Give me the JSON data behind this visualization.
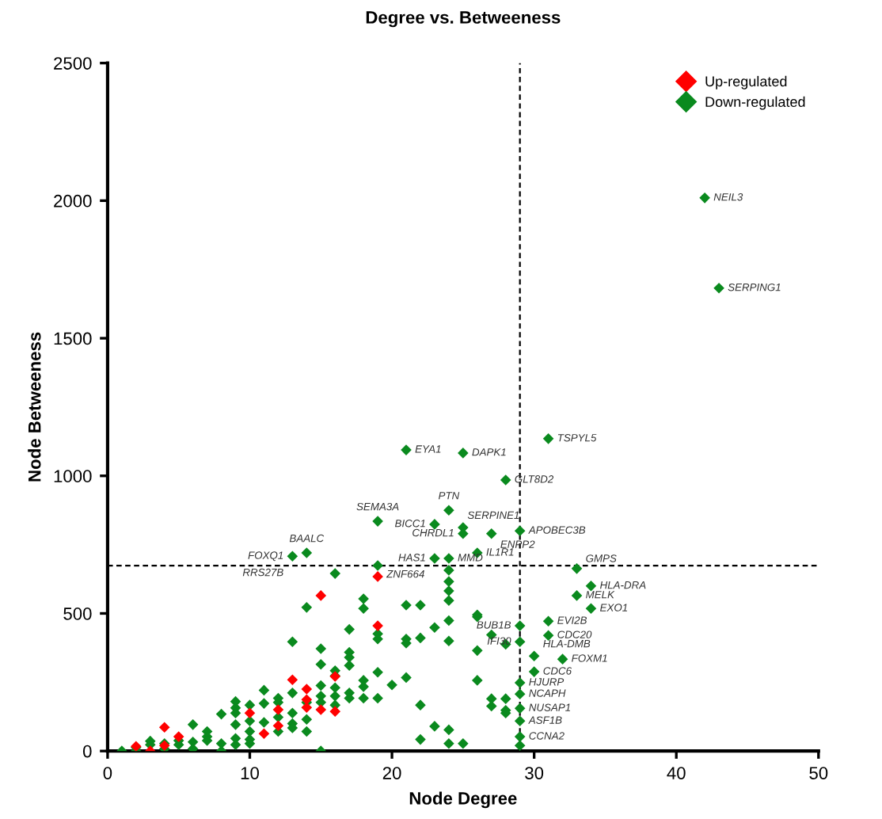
{
  "chart_data": {
    "type": "scatter",
    "title": "Degree vs. Betweeness",
    "xlabel": "Node Degree",
    "ylabel": "Node Betweeness",
    "xlim": [
      0,
      50
    ],
    "ylim": [
      0,
      2500
    ],
    "xticks": [
      0,
      10,
      20,
      30,
      40,
      50
    ],
    "yticks": [
      0,
      500,
      1000,
      1500,
      2000,
      2500
    ],
    "grid": false,
    "legend": "top right",
    "marker": "diamond",
    "series": [
      {
        "name": "Up-regulated",
        "color": "#ff0000",
        "x": [
          2,
          3,
          4,
          4,
          5,
          10,
          11,
          12,
          12,
          13,
          14,
          14,
          14,
          15,
          16,
          16,
          19,
          15,
          19
        ],
        "values": [
          17,
          0,
          86,
          20,
          52,
          138,
          63,
          150,
          92,
          259,
          225,
          187,
          158,
          150,
          144,
          271,
          455,
          565,
          634
        ]
      },
      {
        "name": "Down-regulated",
        "color": "#0a8a1e",
        "x": [
          42,
          43,
          31,
          21,
          25,
          28,
          24,
          23,
          19,
          25,
          25,
          27,
          29,
          26,
          23,
          24,
          19,
          14,
          13,
          33,
          34,
          33,
          34,
          29,
          31,
          29,
          31,
          30,
          32,
          30,
          29,
          29,
          29,
          29,
          29,
          29,
          1,
          2,
          2,
          3,
          3,
          4,
          4,
          5,
          5,
          6,
          6,
          6,
          7,
          7,
          7,
          8,
          8,
          8,
          9,
          9,
          9,
          9,
          9,
          9,
          10,
          10,
          10,
          10,
          10,
          11,
          11,
          11,
          12,
          12,
          12,
          12,
          13,
          13,
          13,
          13,
          13,
          14,
          14,
          14,
          14,
          15,
          15,
          15,
          15,
          15,
          15,
          16,
          16,
          16,
          16,
          16,
          16,
          17,
          17,
          17,
          17,
          17,
          17,
          18,
          18,
          18,
          18,
          18,
          19,
          19,
          19,
          19,
          20,
          21,
          21,
          21,
          21,
          22,
          22,
          22,
          22,
          23,
          23,
          24,
          24,
          24,
          24,
          24,
          24,
          24,
          24,
          25,
          26,
          26,
          26,
          26,
          27,
          27,
          27,
          28,
          28,
          28,
          28
        ],
        "values": [
          2010,
          1682,
          1135,
          1094,
          1083,
          985,
          875,
          824,
          835,
          812,
          790,
          790,
          800,
          720,
          700,
          700,
          674,
          720,
          708,
          663,
          600,
          565,
          518,
          455,
          472,
          397,
          420,
          345,
          334,
          288,
          248,
          207,
          155,
          109,
          52,
          20,
          0,
          0,
          13,
          36,
          23,
          27,
          8,
          23,
          38,
          96,
          33,
          8,
          71,
          52,
          38,
          134,
          27,
          0,
          180,
          157,
          138,
          96,
          46,
          23,
          167,
          109,
          71,
          42,
          27,
          221,
          173,
          104,
          192,
          177,
          123,
          71,
          397,
          211,
          138,
          100,
          84,
          522,
          177,
          115,
          71,
          372,
          315,
          238,
          200,
          177,
          0,
          292,
          273,
          230,
          200,
          167,
          645,
          442,
          359,
          340,
          311,
          211,
          192,
          553,
          518,
          257,
          234,
          192,
          426,
          407,
          286,
          192,
          240,
          530,
          407,
          392,
          267,
          530,
          411,
          167,
          42,
          449,
          90,
          657,
          616,
          582,
          547,
          474,
          400,
          77,
          27,
          27,
          495,
          488,
          365,
          257,
          422,
          190,
          163,
          388,
          190,
          148,
          138
        ]
      }
    ],
    "ref_lines": [
      {
        "axis": "x",
        "value": 29,
        "line_style": "dashed",
        "color": "#000000"
      },
      {
        "axis": "y",
        "value": 674,
        "line_style": "dashed",
        "color": "#000000"
      }
    ],
    "annotations": [
      {
        "text": "NEIL3",
        "x": 42,
        "y": 2010
      },
      {
        "text": "SERPING1",
        "x": 43,
        "y": 1682
      },
      {
        "text": "TSPYL5",
        "x": 31,
        "y": 1135
      },
      {
        "text": "EYA1",
        "x": 21,
        "y": 1094
      },
      {
        "text": "DAPK1",
        "x": 25,
        "y": 1083
      },
      {
        "text": "GLT8D2",
        "x": 28,
        "y": 985
      },
      {
        "text": "PTN",
        "x": 24,
        "y": 875
      },
      {
        "text": "BICC1",
        "x": 23,
        "y": 824
      },
      {
        "text": "SEMA3A",
        "x": 19,
        "y": 835
      },
      {
        "text": "SERPINE1",
        "x": 25,
        "y": 812
      },
      {
        "text": "CHRDL1",
        "x": 25,
        "y": 790
      },
      {
        "text": "ENPP2",
        "x": 27,
        "y": 790
      },
      {
        "text": "APOBEC3B",
        "x": 29,
        "y": 800
      },
      {
        "text": "IL1R1",
        "x": 26,
        "y": 720
      },
      {
        "text": "HAS1",
        "x": 23,
        "y": 700
      },
      {
        "text": "MMD",
        "x": 24,
        "y": 700
      },
      {
        "text": "ZNF664",
        "x": 19,
        "y": 674
      },
      {
        "text": "BAALC",
        "x": 14,
        "y": 720
      },
      {
        "text": "FOXQ1",
        "x": 13,
        "y": 708
      },
      {
        "text": "RRS27B",
        "x": 13,
        "y": 680
      },
      {
        "text": "GMPS",
        "x": 33,
        "y": 663
      },
      {
        "text": "HLA-DRA",
        "x": 34,
        "y": 600
      },
      {
        "text": "MELK",
        "x": 33,
        "y": 565
      },
      {
        "text": "EXO1",
        "x": 34,
        "y": 518
      },
      {
        "text": "BUB1B",
        "x": 29,
        "y": 455
      },
      {
        "text": "EVI2B",
        "x": 31,
        "y": 472
      },
      {
        "text": "IFI30",
        "x": 29,
        "y": 397
      },
      {
        "text": "CDC20",
        "x": 31,
        "y": 420
      },
      {
        "text": "HLA-DMB",
        "x": 30,
        "y": 345
      },
      {
        "text": "FOXM1",
        "x": 32,
        "y": 334
      },
      {
        "text": "CDC6",
        "x": 30,
        "y": 288
      },
      {
        "text": "HJURP",
        "x": 29,
        "y": 248
      },
      {
        "text": "NCAPH",
        "x": 29,
        "y": 207
      },
      {
        "text": "NUSAP1",
        "x": 29,
        "y": 155
      },
      {
        "text": "ASF1B",
        "x": 29,
        "y": 109
      },
      {
        "text": "CCNA2",
        "x": 29,
        "y": 52
      }
    ]
  }
}
